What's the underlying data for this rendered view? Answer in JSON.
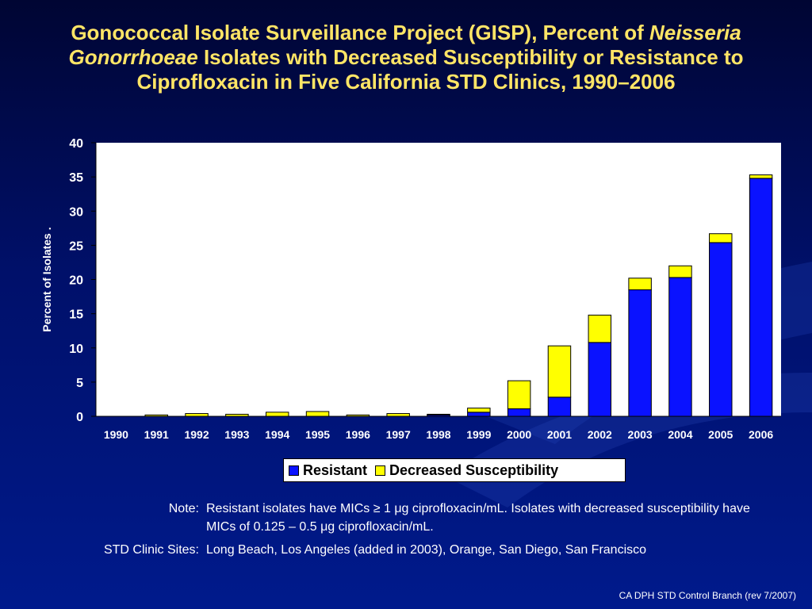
{
  "title": {
    "part1": "Gonococcal Isolate Surveillance Project (GISP), Percent of ",
    "italic1": "Neisseria Gonorrhoeae",
    "part2": " Isolates with Decreased Susceptibility or Resistance to Ciprofloxacin in Five California STD Clinics, 1990–2006"
  },
  "chart_data": {
    "type": "bar",
    "stacked": true,
    "categories": [
      "1990",
      "1991",
      "1992",
      "1993",
      "1994",
      "1995",
      "1996",
      "1997",
      "1998",
      "1999",
      "2000",
      "2001",
      "2002",
      "2003",
      "2004",
      "2005",
      "2006"
    ],
    "series": [
      {
        "name": "Resistant",
        "color": "#0a12ff",
        "values": [
          0,
          0,
          0,
          0,
          0,
          0,
          0,
          0,
          0.2,
          0.6,
          1.1,
          2.8,
          10.8,
          18.5,
          20.3,
          25.4,
          34.8
        ]
      },
      {
        "name": "Decreased Susceptibility",
        "color": "#ffff00",
        "values": [
          0,
          0.2,
          0.4,
          0.3,
          0.6,
          0.7,
          0.2,
          0.4,
          0.1,
          0.6,
          4.1,
          7.5,
          4.0,
          1.7,
          1.7,
          1.3,
          0.5
        ]
      }
    ],
    "ylabel": "Percent of Isolates .",
    "xlabel": "",
    "ylim": [
      0,
      40
    ],
    "yticks": [
      "0",
      "5",
      "10",
      "15",
      "20",
      "25",
      "30",
      "35",
      "40"
    ],
    "grid": false,
    "legend": "bottom-center"
  },
  "notes": [
    {
      "label": "Note:",
      "text": "Resistant isolates have MICs ≥ 1 μg ciprofloxacin/mL.  Isolates with decreased susceptibility have MICs of 0.125 – 0.5 μg ciprofloxacin/mL."
    },
    {
      "label": "STD Clinic Sites:",
      "text": "Long Beach, Los Angeles (added in 2003), Orange, San Diego, San Francisco"
    }
  ],
  "footer": "CA DPH STD Control Branch (rev 7/2007)"
}
